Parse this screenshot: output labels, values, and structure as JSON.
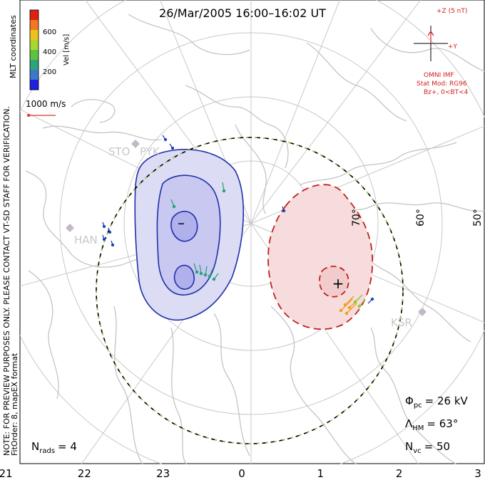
{
  "title": "26/Mar/2005 16:00–16:02 UT",
  "colorbar": {
    "unit_label": "Vel [m/s]",
    "ticks": [
      "600",
      "400",
      "200"
    ],
    "colors": [
      "#2020e0",
      "#3a78c8",
      "#2ea27a",
      "#60c040",
      "#a8d830",
      "#f0c020",
      "#f07820",
      "#e02010"
    ]
  },
  "coord_label": "MLT coordinates",
  "vector_scale": {
    "label": "1000 m/s",
    "color": "#e03030"
  },
  "note": "NOTE: FOR PREVIEW PURPOSES ONLY. PLEASE CONTACT VT-SD STAFF FOR VERIFICATION.",
  "fit_info": "FitOrder: 8, mapEX format",
  "imf": {
    "z_label": "+Z (5 nT)",
    "y_label": "+Y",
    "source": "OMNI IMF",
    "model": "Stat Mod: RG96",
    "condition": "Bz+, 0<BT<4",
    "color": "#d02020"
  },
  "stations": [
    "STO",
    "PYK",
    "HAN",
    "KSR"
  ],
  "latitudes": [
    "70°",
    "60°",
    "50°"
  ],
  "mlt_ticks": [
    "21",
    "22",
    "23",
    "0",
    "1",
    "2",
    "3"
  ],
  "cells": {
    "negative_marker": "–",
    "positive_marker": "+"
  },
  "stats": {
    "phi_pc": {
      "label": "Φ",
      "sub": "pc",
      "value": "= 26 kV"
    },
    "lambda_hm": {
      "label": "Λ",
      "sub": "HM",
      "value": "= 63°"
    },
    "n_vc": {
      "label": "N",
      "sub": "vc",
      "value": "= 50"
    },
    "n_rads": {
      "label": "N",
      "sub": "rads",
      "value": "= 4"
    }
  }
}
